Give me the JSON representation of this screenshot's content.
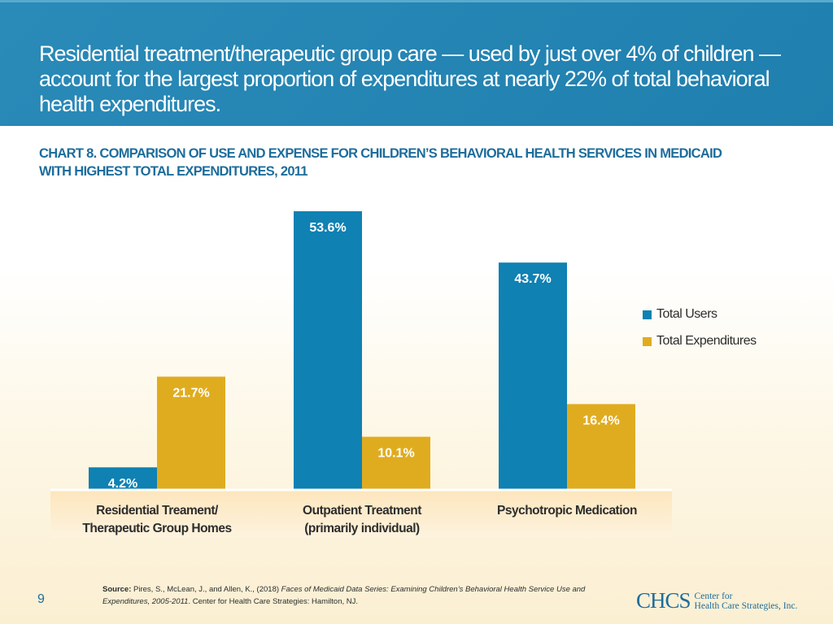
{
  "slide": {
    "headline": "Residential treatment/therapeutic group care — used by just over 4% of children — account for the largest proportion of expenditures at nearly 22% of total behavioral health expenditures.",
    "chart_title_line1": "CHART 8. COMPARISON OF USE AND EXPENSE FOR CHILDREN’S BEHAVIORAL HEALTH SERVICES IN MEDICAID",
    "chart_title_line2": "WITH HIGHEST TOTAL EXPENDITURES, 2011",
    "page_number": "9",
    "source_label": "Source:",
    "source_authors": "Pires, S., McLean, J., and Allen, K., (2018)",
    "source_title": "Faces of Medicaid Data Series: Examining Children’s Behavioral Health Service Use and Expenditures, 2005-2011",
    "source_publisher": ". Center for Health Care Strategies: Hamilton, NJ.",
    "logo_mark": "CHCS",
    "logo_line1": "Center for",
    "logo_line2": "Health Care Strategies, Inc."
  },
  "colors": {
    "users": "#0f81b3",
    "expenditures": "#e0ac1f",
    "axis": "#ffffff"
  },
  "chart_data": {
    "type": "bar",
    "title": "CHART 8. COMPARISON OF USE AND EXPENSE FOR CHILDREN’S BEHAVIORAL HEALTH SERVICES IN MEDICAID WITH HIGHEST TOTAL EXPENDITURES, 2011",
    "categories": [
      [
        "Residential Treament/",
        "Therapeutic Group Homes"
      ],
      [
        "Outpatient Treatment",
        "(primarily individual)"
      ],
      [
        "Psychotropic Medication"
      ]
    ],
    "series": [
      {
        "name": "Total Users",
        "values": [
          4.2,
          53.6,
          43.7
        ],
        "labels": [
          "4.2%",
          "53.6%",
          "43.7%"
        ]
      },
      {
        "name": "Total Expenditures",
        "values": [
          21.7,
          10.1,
          16.4
        ],
        "labels": [
          "21.7%",
          "10.1%",
          "16.4%"
        ]
      }
    ],
    "ylim": [
      0,
      53.6
    ],
    "legend_position": "right",
    "grid": false
  }
}
